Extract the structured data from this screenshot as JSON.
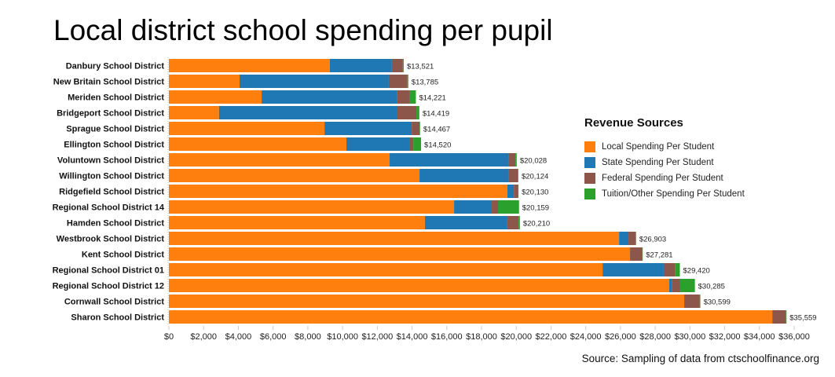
{
  "colors": {
    "local": "#ff7f0e",
    "state": "#1f77b4",
    "federal": "#8c564b",
    "tuition": "#2ca02c"
  },
  "chart_data": {
    "type": "bar",
    "orientation": "horizontal",
    "stacked": true,
    "title": "Local district school spending per pupil",
    "source": "Source: Sampling of data from ctschoolfinance.org",
    "legend_title": "Revenue Sources",
    "legend_position": "right",
    "xlim": [
      0,
      36000
    ],
    "x_ticks": [
      "$0",
      "$2,000",
      "$4,000",
      "$6,000",
      "$8,000",
      "$10,000",
      "$12,000",
      "$14,000",
      "$16,000",
      "$18,000",
      "$20,000",
      "$22,000",
      "$24,000",
      "$26,000",
      "$28,000",
      "$30,000",
      "$32,000",
      "$34,000",
      "$36,000"
    ],
    "x_tick_values": [
      0,
      2000,
      4000,
      6000,
      8000,
      10000,
      12000,
      14000,
      16000,
      18000,
      20000,
      22000,
      24000,
      26000,
      28000,
      30000,
      32000,
      34000,
      36000
    ],
    "categories": [
      "Danbury School District",
      "New Britain School District",
      "Meriden School District",
      "Bridgeport School District",
      "Sprague School District",
      "Ellington School District",
      "Voluntown School District",
      "Willington School District",
      "Ridgefield School District",
      "Regional School District 14",
      "Hamden School District",
      "Westbrook School District",
      "Kent School District",
      "Regional School District 01",
      "Regional School District 12",
      "Cornwall School District",
      "Sharon School District"
    ],
    "series": [
      {
        "name": "Local Spending Per Student",
        "key": "local",
        "values": [
          9270,
          4070,
          5340,
          2890,
          8960,
          10220,
          12710,
          14430,
          19490,
          16420,
          14740,
          25920,
          26550,
          24970,
          28810,
          29670,
          34740
        ]
      },
      {
        "name": "State Spending Per Student",
        "key": "state",
        "values": [
          3570,
          8590,
          7780,
          10270,
          5020,
          3620,
          6830,
          5110,
          370,
          2170,
          4750,
          540,
          0,
          3520,
          140,
          0,
          0
        ]
      },
      {
        "name": "Federal Spending Per Student",
        "key": "federal",
        "values": [
          630,
          1080,
          760,
          1090,
          457,
          230,
          410,
          554,
          240,
          360,
          640,
          413,
          701,
          640,
          490,
          899,
          789
        ]
      },
      {
        "name": "Tuition/Other Spending Per Student",
        "key": "tuition",
        "values": [
          51,
          45,
          341,
          169,
          30,
          450,
          78,
          30,
          30,
          1209,
          80,
          30,
          30,
          290,
          845,
          30,
          30
        ]
      }
    ],
    "totals": [
      "$13,521",
      "$13,785",
      "$14,221",
      "$14,419",
      "$14,467",
      "$14,520",
      "$20,028",
      "$20,124",
      "$20,130",
      "$20,159",
      "$20,210",
      "$26,903",
      "$27,281",
      "$29,420",
      "$30,285",
      "$30,599",
      "$35,559"
    ],
    "total_values": [
      13521,
      13785,
      14221,
      14419,
      14467,
      14520,
      20028,
      20124,
      20130,
      20159,
      20210,
      26903,
      27281,
      29420,
      30285,
      30599,
      35559
    ]
  }
}
